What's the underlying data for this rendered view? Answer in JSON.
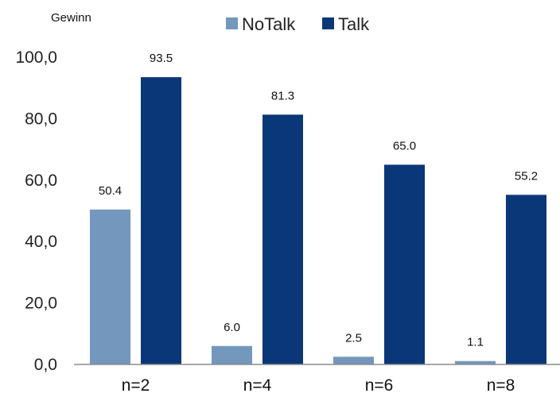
{
  "chart_data": {
    "type": "bar",
    "ylabel": "Gewinn",
    "ylim": [
      0,
      100
    ],
    "yticks": [
      "0,0",
      "20,0",
      "40,0",
      "60,0",
      "80,0",
      "100,0"
    ],
    "categories": [
      "n=2",
      "n=4",
      "n=6",
      "n=8"
    ],
    "series": [
      {
        "name": "NoTalk",
        "color": "#7397bd",
        "values": [
          50.4,
          6.0,
          2.5,
          1.1
        ],
        "labels": [
          "50.4",
          "6.0",
          "2.5",
          "1.1"
        ]
      },
      {
        "name": "Talk",
        "color": "#0a3778",
        "values": [
          93.5,
          81.3,
          65.0,
          55.2
        ],
        "labels": [
          "93.5",
          "81.3",
          "65.0",
          "55.2"
        ]
      }
    ],
    "legend_position": "top",
    "grid": false
  }
}
